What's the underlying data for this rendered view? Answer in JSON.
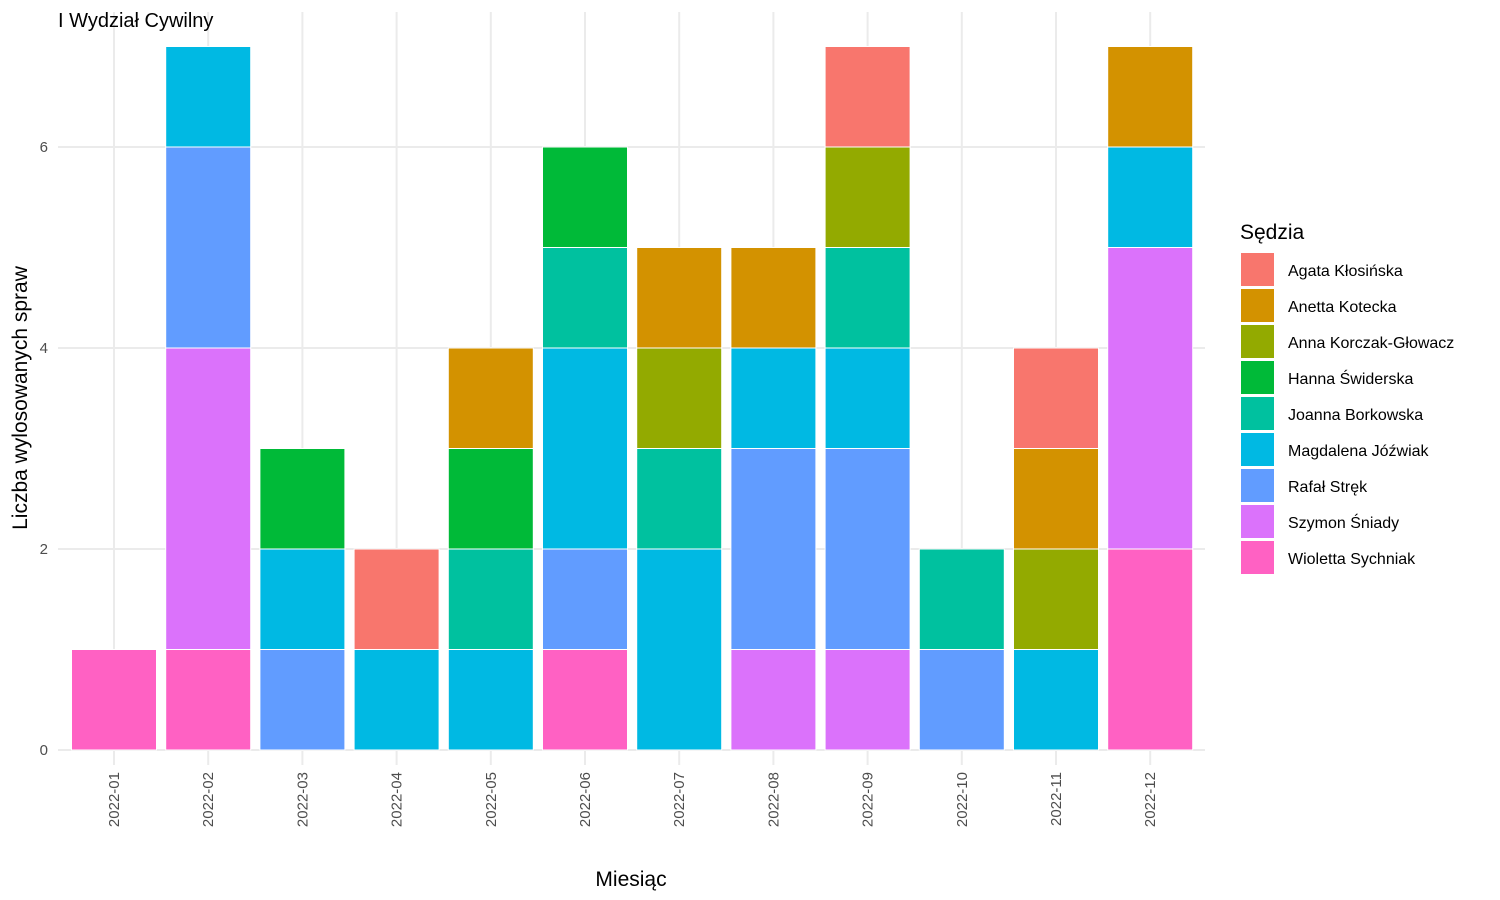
{
  "chart_data": {
    "type": "bar",
    "stacked": true,
    "title": "I Wydział Cywilny",
    "xlabel": "Miesiąc",
    "ylabel": "Liczba wylosowanych spraw",
    "ylim": [
      0,
      7
    ],
    "yticks": [
      0,
      2,
      4,
      6
    ],
    "grid": true,
    "legend": {
      "title": "Sędzia",
      "position": "right"
    },
    "categories": [
      "2022-01",
      "2022-02",
      "2022-03",
      "2022-04",
      "2022-05",
      "2022-06",
      "2022-07",
      "2022-08",
      "2022-09",
      "2022-10",
      "2022-11",
      "2022-12"
    ],
    "series": [
      {
        "name": "Agata Kłosińska",
        "color": "#F8766D",
        "values": [
          0,
          0,
          0,
          1,
          0,
          0,
          0,
          0,
          1,
          0,
          1,
          0
        ]
      },
      {
        "name": "Anetta Kotecka",
        "color": "#D39200",
        "values": [
          0,
          0,
          0,
          0,
          1,
          0,
          1,
          1,
          0,
          0,
          1,
          1
        ]
      },
      {
        "name": "Anna Korczak-Głowacz",
        "color": "#93AA00",
        "values": [
          0,
          0,
          0,
          0,
          0,
          0,
          1,
          0,
          1,
          0,
          1,
          0
        ]
      },
      {
        "name": "Hanna Świderska",
        "color": "#00BA38",
        "values": [
          0,
          0,
          1,
          0,
          1,
          1,
          0,
          0,
          0,
          0,
          0,
          0
        ]
      },
      {
        "name": "Joanna Borkowska",
        "color": "#00C19F",
        "values": [
          0,
          0,
          0,
          0,
          1,
          1,
          1,
          0,
          1,
          1,
          0,
          0
        ]
      },
      {
        "name": "Magdalena Jóźwiak",
        "color": "#00B9E3",
        "values": [
          0,
          1,
          1,
          1,
          1,
          2,
          2,
          1,
          1,
          0,
          1,
          1
        ]
      },
      {
        "name": "Rafał Stręk",
        "color": "#619CFF",
        "values": [
          0,
          2,
          1,
          0,
          0,
          1,
          0,
          2,
          2,
          1,
          0,
          0
        ]
      },
      {
        "name": "Szymon Śniady",
        "color": "#DB72FB",
        "values": [
          0,
          3,
          0,
          0,
          0,
          0,
          0,
          1,
          1,
          0,
          0,
          3
        ]
      },
      {
        "name": "Wioletta Sychniak",
        "color": "#FF61C3",
        "values": [
          1,
          1,
          0,
          0,
          0,
          1,
          0,
          0,
          0,
          0,
          0,
          2
        ]
      }
    ]
  }
}
